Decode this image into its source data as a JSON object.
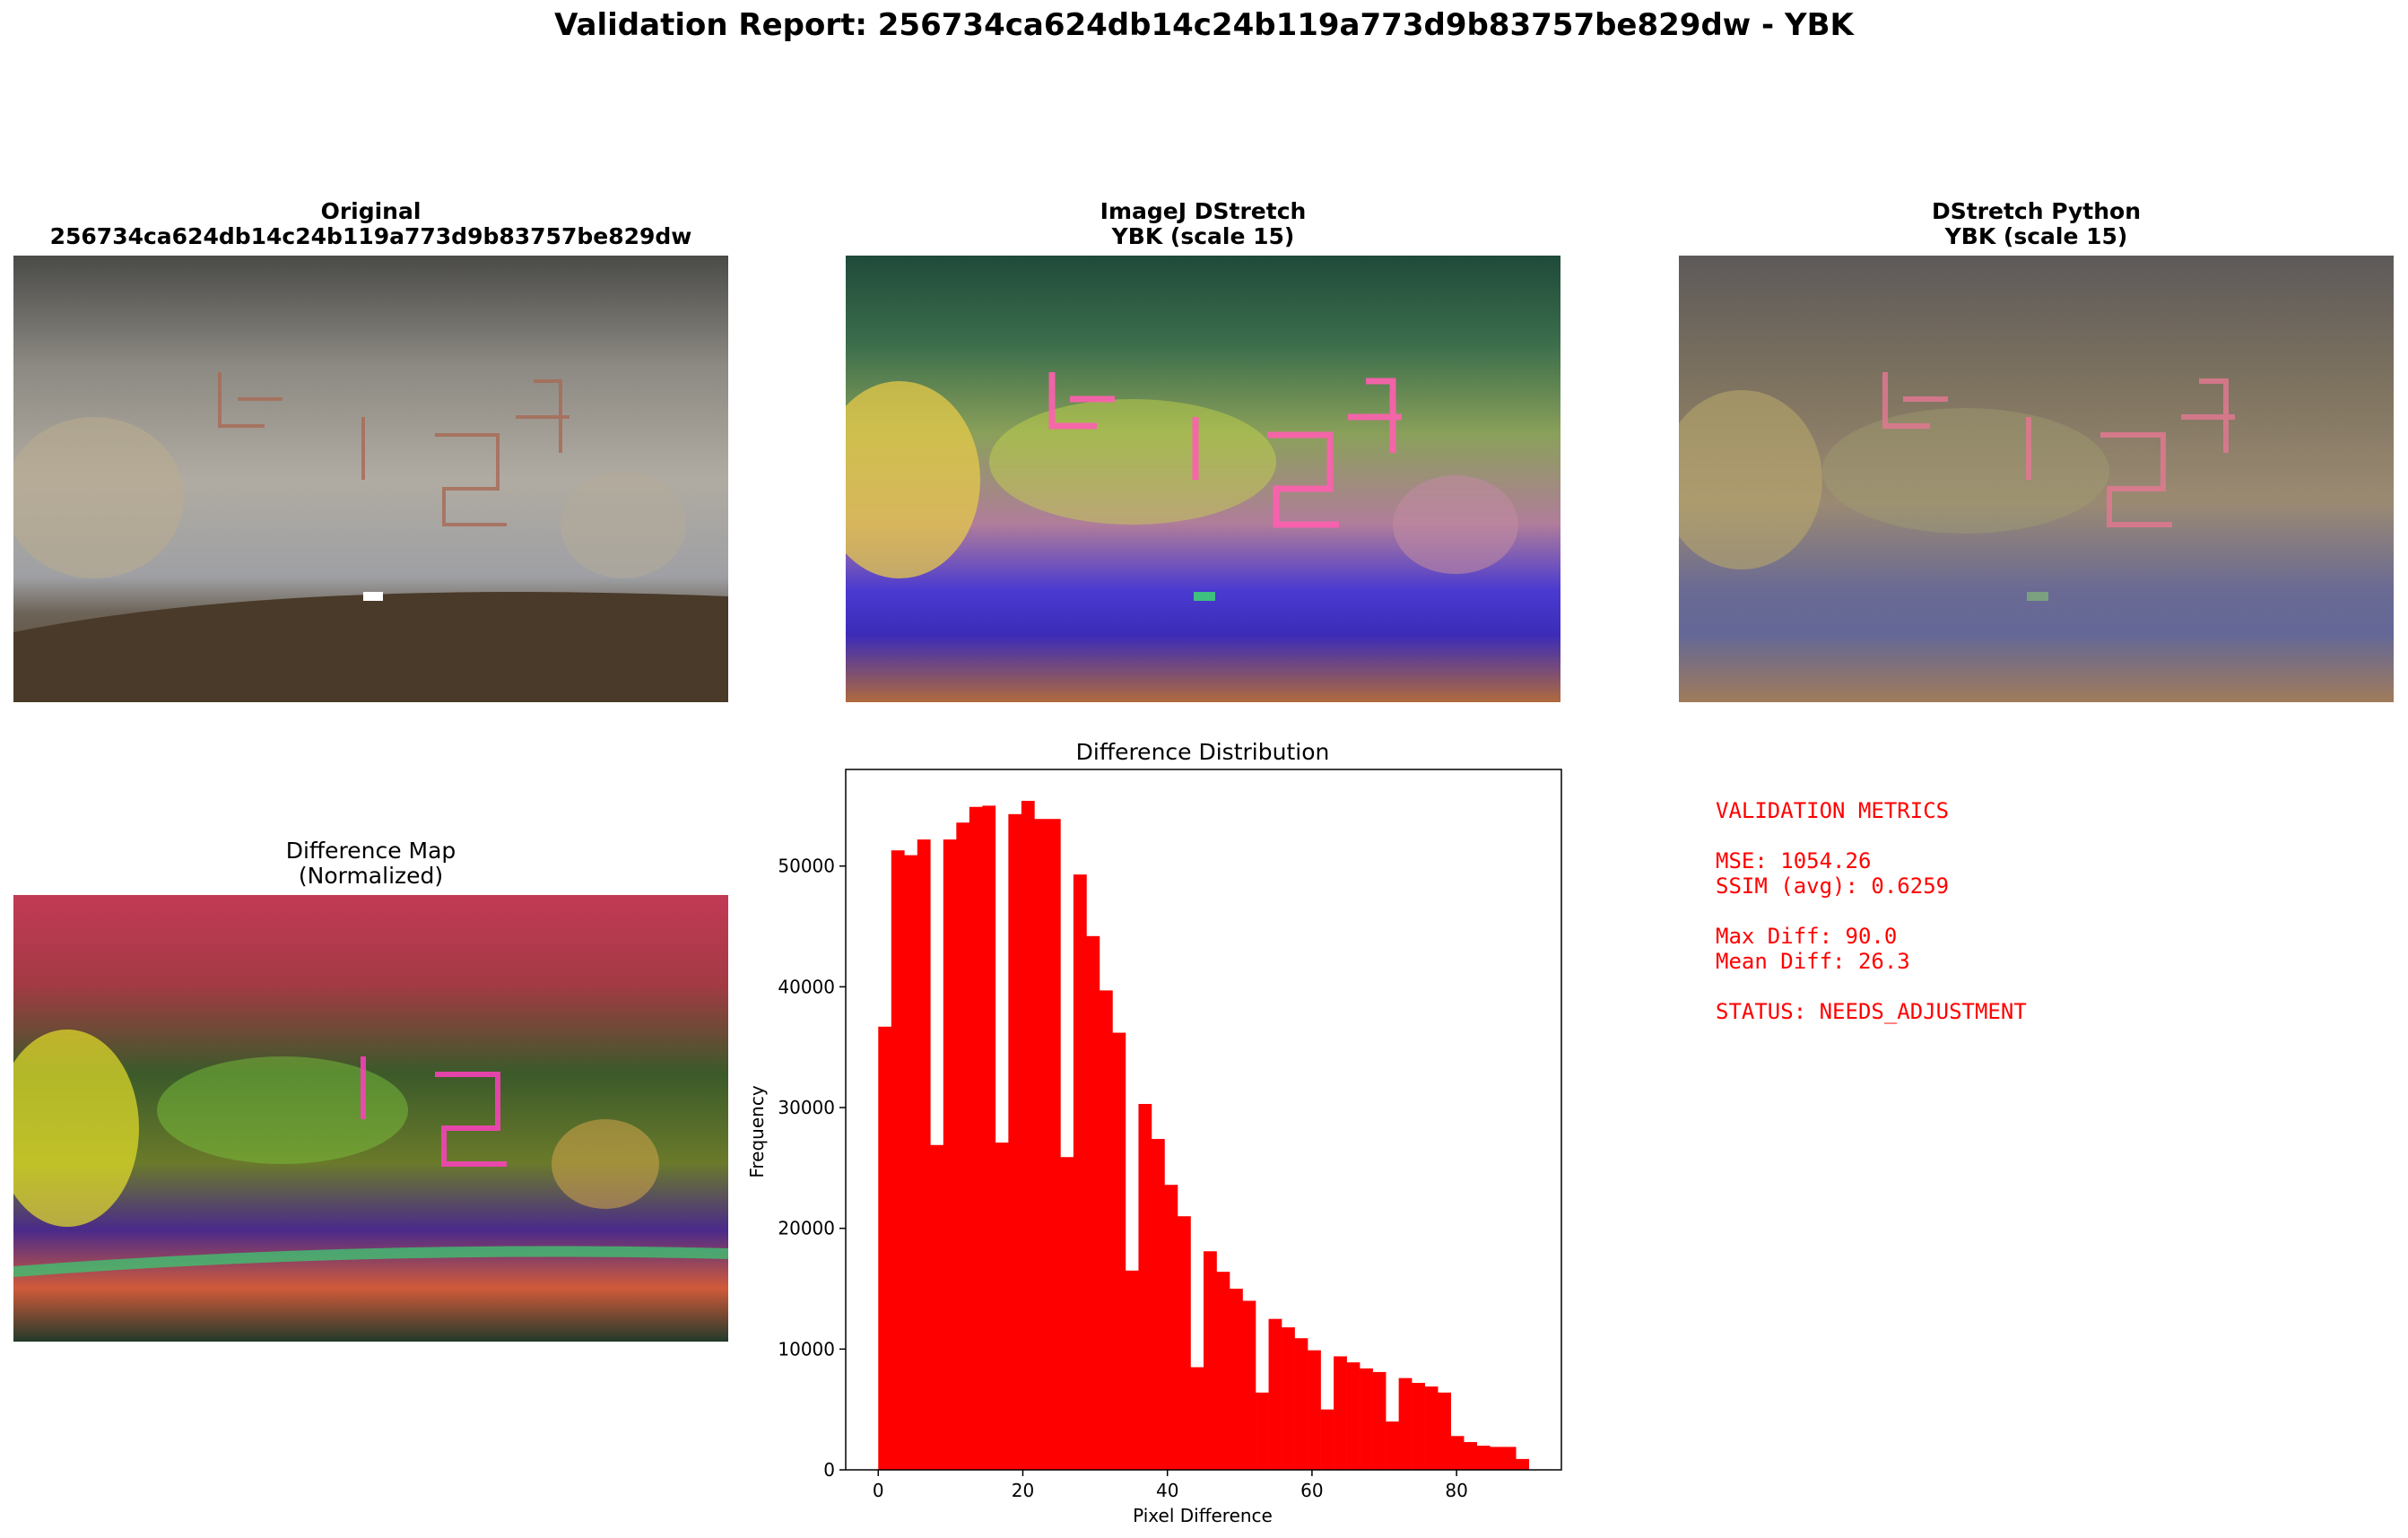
{
  "report": {
    "title": "Validation Report: 256734ca624db14c24b119a773d9b83757be829dw - YBK"
  },
  "panels": {
    "original": {
      "title1": "Original",
      "title2": "256734ca624db14c24b119a773d9b83757be829dw"
    },
    "imagej": {
      "title1": "ImageJ DStretch",
      "title2": "YBK (scale 15)"
    },
    "python": {
      "title1": "DStretch Python",
      "title2": "YBK (scale 15)"
    },
    "diffmap": {
      "title1": "Difference Map",
      "title2": "(Normalized)"
    }
  },
  "metrics": {
    "heading": "VALIDATION METRICS",
    "mse": "MSE: 1054.26",
    "ssim": "SSIM (avg): 0.6259",
    "max_diff": "Max Diff: 90.0",
    "mean_diff": "Mean Diff: 26.3",
    "status": "STATUS: NEEDS_ADJUSTMENT",
    "color": "#ff0000"
  },
  "chart_data": {
    "type": "bar",
    "title": "Difference Distribution",
    "xlabel": "Pixel Difference",
    "ylabel": "Frequency",
    "xlim": [
      -4.5,
      94.5
    ],
    "ylim": [
      0,
      58000
    ],
    "xticks": [
      0,
      20,
      40,
      60,
      80
    ],
    "yticks": [
      0,
      10000,
      20000,
      30000,
      40000,
      50000
    ],
    "bar_color": "#ff0000",
    "bin_width": 1.8,
    "bin_starts": [
      0,
      1.8,
      3.6,
      5.4,
      7.2,
      9.0,
      10.8,
      12.6,
      14.4,
      16.2,
      18.0,
      19.8,
      21.6,
      23.4,
      25.2,
      27.0,
      28.8,
      30.6,
      32.4,
      34.2,
      36.0,
      37.8,
      39.6,
      41.4,
      43.2,
      45.0,
      46.8,
      48.6,
      50.4,
      52.2,
      54.0,
      55.8,
      57.6,
      59.4,
      61.2,
      63.0,
      64.8,
      66.6,
      68.4,
      70.2,
      72.0,
      73.8,
      75.6,
      77.4,
      79.2,
      81.0,
      82.8,
      84.6,
      86.4,
      88.2
    ],
    "values": [
      36700,
      51300,
      50900,
      52200,
      26900,
      52200,
      53600,
      54900,
      55000,
      27100,
      54300,
      55400,
      53900,
      53900,
      25900,
      49300,
      44200,
      39700,
      36200,
      16500,
      30300,
      27400,
      23600,
      21000,
      8500,
      18100,
      16400,
      15000,
      14000,
      6400,
      12500,
      11800,
      10900,
      9900,
      5000,
      9400,
      8900,
      8400,
      8100,
      4000,
      7600,
      7200,
      6900,
      6400,
      2800,
      2300,
      2000,
      1900,
      1900,
      900
    ]
  }
}
